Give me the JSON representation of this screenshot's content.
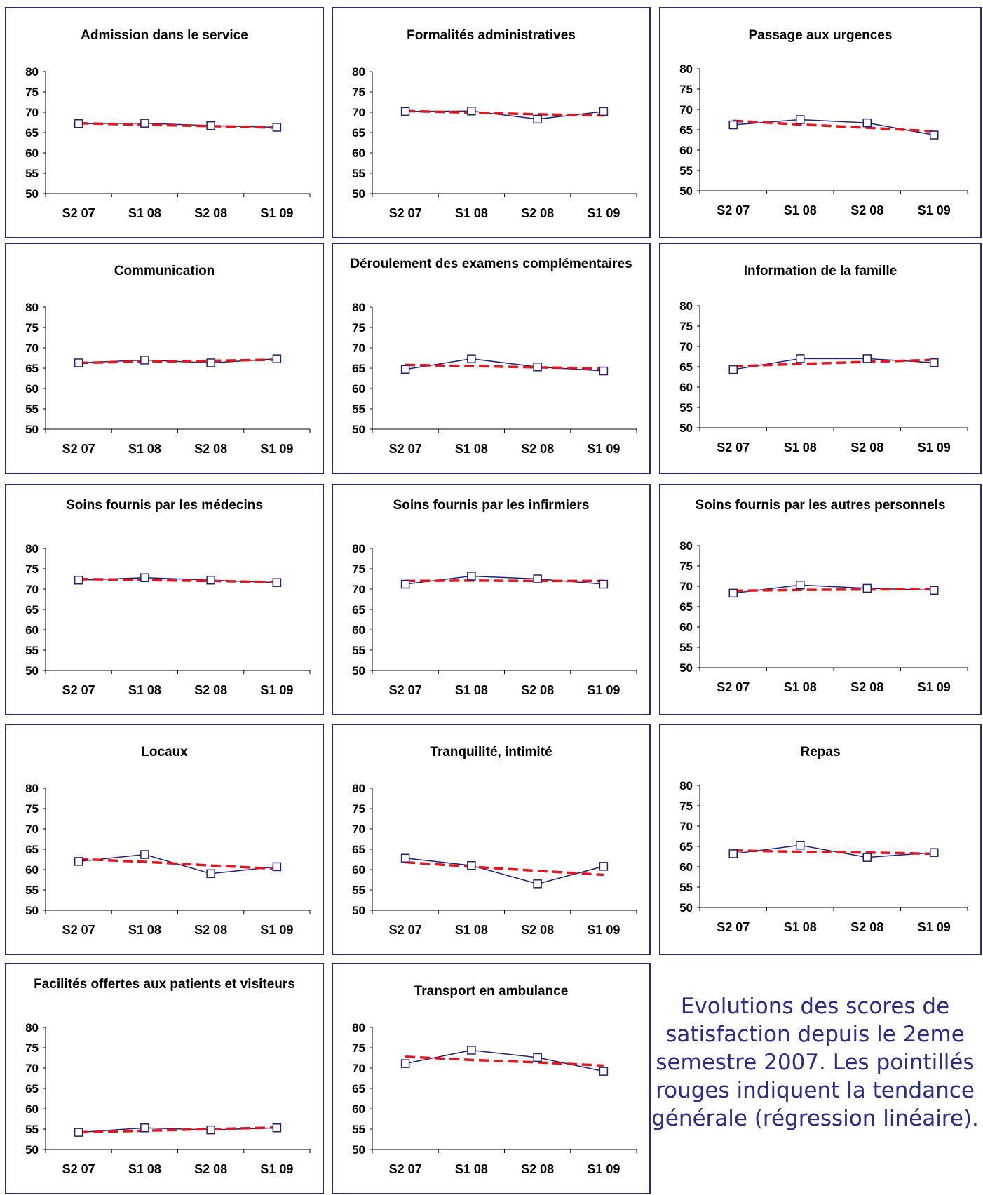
{
  "caption": "Evolutions des scores de satisfaction depuis le 2eme semestre 2007. Les pointillés rouges indiquent la tendance générale (régression linéaire).",
  "colors": {
    "series": "#1f1f7a",
    "trend": "#e8141b",
    "border": "#2b2b6e",
    "caption": "#2b2b8f"
  },
  "chart_data": [
    {
      "type": "line",
      "title": "Admission dans le service",
      "categories": [
        "S2 07",
        "S1 08",
        "S2 08",
        "S1 09"
      ],
      "ylim": [
        50,
        80
      ],
      "yticks": [
        50,
        55,
        60,
        65,
        70,
        75,
        80
      ],
      "values": [
        67.2,
        67.3,
        66.7,
        66.3
      ],
      "trend": [
        67.3,
        66.9,
        66.6,
        66.2
      ]
    },
    {
      "type": "line",
      "title": "Formalités administratives",
      "categories": [
        "S2 07",
        "S1 08",
        "S2 08",
        "S1 09"
      ],
      "ylim": [
        50,
        80
      ],
      "yticks": [
        50,
        55,
        60,
        65,
        70,
        75,
        80
      ],
      "values": [
        70.2,
        70.3,
        68.3,
        70.2
      ],
      "trend": [
        70.3,
        69.9,
        69.5,
        69.2
      ]
    },
    {
      "type": "line",
      "title": "Passage aux urgences",
      "categories": [
        "S2 07",
        "S1 08",
        "S2 08",
        "S1 09"
      ],
      "ylim": [
        50,
        80
      ],
      "yticks": [
        50,
        55,
        60,
        65,
        70,
        75,
        80
      ],
      "values": [
        66.2,
        67.5,
        66.7,
        63.7
      ],
      "trend": [
        67.2,
        66.3,
        65.5,
        64.6
      ]
    },
    {
      "type": "line",
      "title": "Communication",
      "categories": [
        "S2 07",
        "S1 08",
        "S2 08",
        "S1 09"
      ],
      "ylim": [
        50,
        80
      ],
      "yticks": [
        50,
        55,
        60,
        65,
        70,
        75,
        80
      ],
      "values": [
        66.3,
        67.0,
        66.3,
        67.3
      ],
      "trend": [
        66.3,
        66.6,
        66.8,
        67.1
      ]
    },
    {
      "type": "line",
      "title": "Déroulement des examens complémentaires",
      "categories": [
        "S2 07",
        "S1 08",
        "S2 08",
        "S1 09"
      ],
      "ylim": [
        50,
        80
      ],
      "yticks": [
        50,
        55,
        60,
        65,
        70,
        75,
        80
      ],
      "values": [
        64.7,
        67.3,
        65.3,
        64.3
      ],
      "trend": [
        65.8,
        65.5,
        65.2,
        64.9
      ]
    },
    {
      "type": "line",
      "title": "Information de la famille",
      "categories": [
        "S2 07",
        "S1 08",
        "S2 08",
        "S1 09"
      ],
      "ylim": [
        50,
        80
      ],
      "yticks": [
        50,
        55,
        60,
        65,
        70,
        75,
        80
      ],
      "values": [
        64.3,
        67.0,
        67.0,
        66.0
      ],
      "trend": [
        65.1,
        65.7,
        66.2,
        66.7
      ]
    },
    {
      "type": "line",
      "title": "Soins fournis par les médecins",
      "categories": [
        "S2 07",
        "S1 08",
        "S2 08",
        "S1 09"
      ],
      "ylim": [
        50,
        80
      ],
      "yticks": [
        50,
        55,
        60,
        65,
        70,
        75,
        80
      ],
      "values": [
        72.2,
        72.8,
        72.2,
        71.6
      ],
      "trend": [
        72.5,
        72.2,
        72.0,
        71.7
      ]
    },
    {
      "type": "line",
      "title": "Soins fournis par les infirmiers",
      "categories": [
        "S2 07",
        "S1 08",
        "S2 08",
        "S1 09"
      ],
      "ylim": [
        50,
        80
      ],
      "yticks": [
        50,
        55,
        60,
        65,
        70,
        75,
        80
      ],
      "values": [
        71.2,
        73.2,
        72.5,
        71.2
      ],
      "trend": [
        72.0,
        72.1,
        72.0,
        72.0
      ]
    },
    {
      "type": "line",
      "title": "Soins fournis par les autres personnels",
      "categories": [
        "S2 07",
        "S1 08",
        "S2 08",
        "S1 09"
      ],
      "ylim": [
        50,
        80
      ],
      "yticks": [
        50,
        55,
        60,
        65,
        70,
        75,
        80
      ],
      "values": [
        68.3,
        70.3,
        69.5,
        69.0
      ],
      "trend": [
        68.9,
        69.1,
        69.2,
        69.3
      ]
    },
    {
      "type": "line",
      "title": "Locaux",
      "categories": [
        "S2 07",
        "S1 08",
        "S2 08",
        "S1 09"
      ],
      "ylim": [
        50,
        80
      ],
      "yticks": [
        50,
        55,
        60,
        65,
        70,
        75,
        80
      ],
      "values": [
        62.0,
        63.7,
        59.0,
        60.7
      ],
      "trend": [
        62.6,
        61.9,
        61.0,
        60.2
      ]
    },
    {
      "type": "line",
      "title": "Tranquilité, intimité",
      "categories": [
        "S2 07",
        "S1 08",
        "S2 08",
        "S1 09"
      ],
      "ylim": [
        50,
        80
      ],
      "yticks": [
        50,
        55,
        60,
        65,
        70,
        75,
        80
      ],
      "values": [
        62.8,
        61.0,
        56.5,
        60.8
      ],
      "trend": [
        61.8,
        60.7,
        59.7,
        58.7
      ]
    },
    {
      "type": "line",
      "title": "Repas",
      "categories": [
        "S2 07",
        "S1 08",
        "S2 08",
        "S1 09"
      ],
      "ylim": [
        50,
        80
      ],
      "yticks": [
        50,
        55,
        60,
        65,
        70,
        75,
        80
      ],
      "values": [
        63.2,
        65.3,
        62.3,
        63.5
      ],
      "trend": [
        64.0,
        63.7,
        63.5,
        63.2
      ]
    },
    {
      "type": "line",
      "title": "Facilités offertes aux patients et visiteurs",
      "categories": [
        "S2 07",
        "S1 08",
        "S2 08",
        "S1 09"
      ],
      "ylim": [
        50,
        80
      ],
      "yticks": [
        50,
        55,
        60,
        65,
        70,
        75,
        80
      ],
      "values": [
        54.2,
        55.3,
        54.8,
        55.3
      ],
      "trend": [
        54.2,
        54.6,
        55.0,
        55.4
      ]
    },
    {
      "type": "line",
      "title": "Transport en ambulance",
      "categories": [
        "S2 07",
        "S1 08",
        "S2 08",
        "S1 09"
      ],
      "ylim": [
        50,
        80
      ],
      "yticks": [
        50,
        55,
        60,
        65,
        70,
        75,
        80
      ],
      "values": [
        71.1,
        74.4,
        72.6,
        69.2
      ],
      "trend": [
        72.8,
        72.0,
        71.4,
        70.6
      ]
    }
  ]
}
